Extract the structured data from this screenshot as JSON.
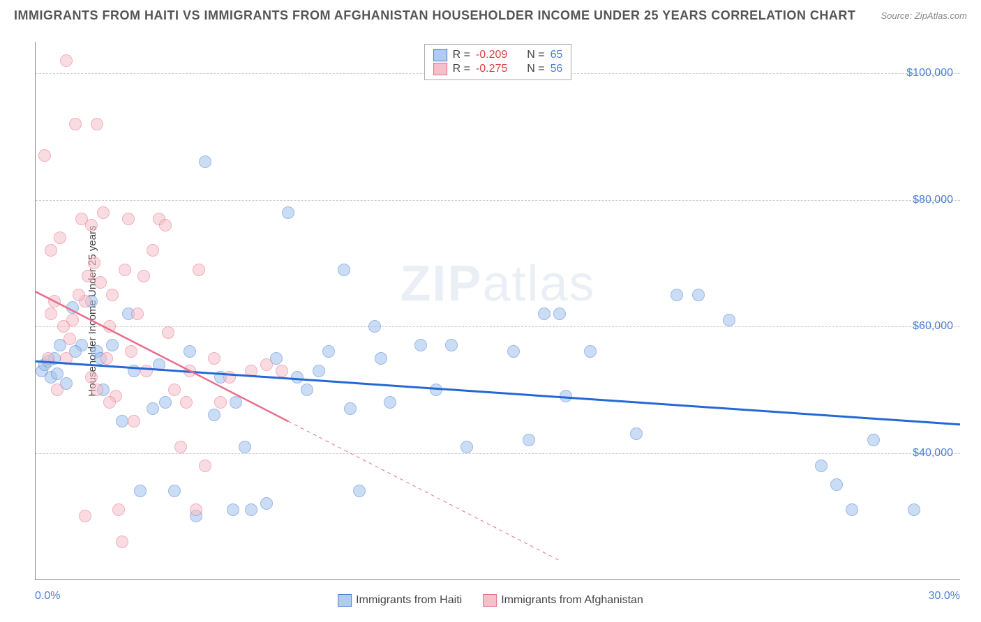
{
  "title": "IMMIGRANTS FROM HAITI VS IMMIGRANTS FROM AFGHANISTAN HOUSEHOLDER INCOME UNDER 25 YEARS CORRELATION CHART",
  "source": "Source: ZipAtlas.com",
  "ylabel": "Householder Income Under 25 years",
  "watermark_bold": "ZIP",
  "watermark_thin": "atlas",
  "chart": {
    "type": "scatter",
    "xlim": [
      0,
      30
    ],
    "ylim": [
      20000,
      105000
    ],
    "yticks": [
      40000,
      60000,
      80000,
      100000
    ],
    "ytick_labels": [
      "$40,000",
      "$60,000",
      "$80,000",
      "$100,000"
    ],
    "xtick_min_label": "0.0%",
    "xtick_max_label": "30.0%",
    "grid_color": "#cccccc",
    "background_color": "#ffffff",
    "point_radius": 9
  },
  "series": [
    {
      "name": "Immigrants from Haiti",
      "color_fill": "#9fc2ec",
      "color_stroke": "#4a7fd6",
      "r": "-0.209",
      "n": "65",
      "trend": {
        "x1": 0,
        "y1": 54500,
        "x2": 30,
        "y2": 44500,
        "color": "#2468d6",
        "width": 3,
        "dash": "none"
      },
      "points": [
        {
          "x": 0.2,
          "y": 53000
        },
        {
          "x": 0.3,
          "y": 54000
        },
        {
          "x": 0.5,
          "y": 52000
        },
        {
          "x": 0.6,
          "y": 55000
        },
        {
          "x": 0.8,
          "y": 57000
        },
        {
          "x": 1.2,
          "y": 63000
        },
        {
          "x": 1.5,
          "y": 57000
        },
        {
          "x": 1.8,
          "y": 64000
        },
        {
          "x": 2.0,
          "y": 56000
        },
        {
          "x": 2.2,
          "y": 50000
        },
        {
          "x": 2.5,
          "y": 57000
        },
        {
          "x": 2.8,
          "y": 45000
        },
        {
          "x": 3.0,
          "y": 62000
        },
        {
          "x": 3.2,
          "y": 53000
        },
        {
          "x": 3.4,
          "y": 34000
        },
        {
          "x": 3.8,
          "y": 47000
        },
        {
          "x": 4.0,
          "y": 54000
        },
        {
          "x": 4.2,
          "y": 48000
        },
        {
          "x": 4.5,
          "y": 34000
        },
        {
          "x": 5.0,
          "y": 56000
        },
        {
          "x": 5.2,
          "y": 30000
        },
        {
          "x": 5.5,
          "y": 86000
        },
        {
          "x": 5.8,
          "y": 46000
        },
        {
          "x": 6.0,
          "y": 52000
        },
        {
          "x": 6.4,
          "y": 31000
        },
        {
          "x": 6.5,
          "y": 48000
        },
        {
          "x": 6.8,
          "y": 41000
        },
        {
          "x": 7.0,
          "y": 31000
        },
        {
          "x": 7.5,
          "y": 32000
        },
        {
          "x": 7.8,
          "y": 55000
        },
        {
          "x": 8.2,
          "y": 78000
        },
        {
          "x": 8.5,
          "y": 52000
        },
        {
          "x": 8.8,
          "y": 50000
        },
        {
          "x": 9.2,
          "y": 53000
        },
        {
          "x": 9.5,
          "y": 56000
        },
        {
          "x": 10.0,
          "y": 69000
        },
        {
          "x": 10.2,
          "y": 47000
        },
        {
          "x": 10.5,
          "y": 34000
        },
        {
          "x": 11.0,
          "y": 60000
        },
        {
          "x": 11.2,
          "y": 55000
        },
        {
          "x": 11.5,
          "y": 48000
        },
        {
          "x": 12.5,
          "y": 57000
        },
        {
          "x": 13.0,
          "y": 50000
        },
        {
          "x": 13.5,
          "y": 57000
        },
        {
          "x": 14.0,
          "y": 41000
        },
        {
          "x": 15.5,
          "y": 56000
        },
        {
          "x": 16.0,
          "y": 42000
        },
        {
          "x": 16.5,
          "y": 62000
        },
        {
          "x": 17.0,
          "y": 62000
        },
        {
          "x": 17.2,
          "y": 49000
        },
        {
          "x": 18.0,
          "y": 56000
        },
        {
          "x": 19.5,
          "y": 43000
        },
        {
          "x": 20.8,
          "y": 65000
        },
        {
          "x": 21.5,
          "y": 65000
        },
        {
          "x": 22.5,
          "y": 61000
        },
        {
          "x": 25.5,
          "y": 38000
        },
        {
          "x": 26.0,
          "y": 35000
        },
        {
          "x": 26.5,
          "y": 31000
        },
        {
          "x": 27.2,
          "y": 42000
        },
        {
          "x": 28.5,
          "y": 31000
        },
        {
          "x": 0.4,
          "y": 54500
        },
        {
          "x": 0.7,
          "y": 52500
        },
        {
          "x": 1.0,
          "y": 51000
        },
        {
          "x": 1.3,
          "y": 56000
        },
        {
          "x": 2.1,
          "y": 55000
        }
      ]
    },
    {
      "name": "Immigrants from Afghanistan",
      "color_fill": "#f5c0ca",
      "color_stroke": "#e86d89",
      "r": "-0.275",
      "n": "56",
      "trend": {
        "x1": 0,
        "y1": 65500,
        "x2": 8.2,
        "y2": 45000,
        "color": "#e86d89",
        "width": 2.5,
        "dash": "none",
        "extend_dash_to": 17
      },
      "points": [
        {
          "x": 0.3,
          "y": 87000
        },
        {
          "x": 0.5,
          "y": 72000
        },
        {
          "x": 0.6,
          "y": 64000
        },
        {
          "x": 0.8,
          "y": 74000
        },
        {
          "x": 1.0,
          "y": 102000
        },
        {
          "x": 1.0,
          "y": 55000
        },
        {
          "x": 1.2,
          "y": 61000
        },
        {
          "x": 1.3,
          "y": 92000
        },
        {
          "x": 1.5,
          "y": 77000
        },
        {
          "x": 1.6,
          "y": 64000
        },
        {
          "x": 1.7,
          "y": 68000
        },
        {
          "x": 1.8,
          "y": 76000
        },
        {
          "x": 2.0,
          "y": 92000
        },
        {
          "x": 2.0,
          "y": 50000
        },
        {
          "x": 2.2,
          "y": 78000
        },
        {
          "x": 2.3,
          "y": 55000
        },
        {
          "x": 2.4,
          "y": 60000
        },
        {
          "x": 2.5,
          "y": 65000
        },
        {
          "x": 2.6,
          "y": 49000
        },
        {
          "x": 2.7,
          "y": 31000
        },
        {
          "x": 2.9,
          "y": 69000
        },
        {
          "x": 3.0,
          "y": 77000
        },
        {
          "x": 3.2,
          "y": 45000
        },
        {
          "x": 3.3,
          "y": 62000
        },
        {
          "x": 3.5,
          "y": 68000
        },
        {
          "x": 3.6,
          "y": 53000
        },
        {
          "x": 3.8,
          "y": 72000
        },
        {
          "x": 4.0,
          "y": 77000
        },
        {
          "x": 4.2,
          "y": 76000
        },
        {
          "x": 4.3,
          "y": 59000
        },
        {
          "x": 4.5,
          "y": 50000
        },
        {
          "x": 4.7,
          "y": 41000
        },
        {
          "x": 4.9,
          "y": 48000
        },
        {
          "x": 5.0,
          "y": 53000
        },
        {
          "x": 5.2,
          "y": 31000
        },
        {
          "x": 5.3,
          "y": 69000
        },
        {
          "x": 5.5,
          "y": 38000
        },
        {
          "x": 5.8,
          "y": 55000
        },
        {
          "x": 6.0,
          "y": 48000
        },
        {
          "x": 6.3,
          "y": 52000
        },
        {
          "x": 7.0,
          "y": 53000
        },
        {
          "x": 7.5,
          "y": 54000
        },
        {
          "x": 8.0,
          "y": 53000
        },
        {
          "x": 0.4,
          "y": 55000
        },
        {
          "x": 0.9,
          "y": 60000
        },
        {
          "x": 1.1,
          "y": 58000
        },
        {
          "x": 1.4,
          "y": 65000
        },
        {
          "x": 1.9,
          "y": 70000
        },
        {
          "x": 2.1,
          "y": 67000
        },
        {
          "x": 2.8,
          "y": 26000
        },
        {
          "x": 1.6,
          "y": 30000
        },
        {
          "x": 0.7,
          "y": 50000
        },
        {
          "x": 0.5,
          "y": 62000
        },
        {
          "x": 1.8,
          "y": 52000
        },
        {
          "x": 2.4,
          "y": 48000
        },
        {
          "x": 3.1,
          "y": 56000
        }
      ]
    }
  ],
  "stats_labels": {
    "r": "R =",
    "n": "N ="
  },
  "bottom_legend": [
    {
      "label": "Immigrants from Haiti",
      "swatch": "blue"
    },
    {
      "label": "Immigrants from Afghanistan",
      "swatch": "pink"
    }
  ]
}
